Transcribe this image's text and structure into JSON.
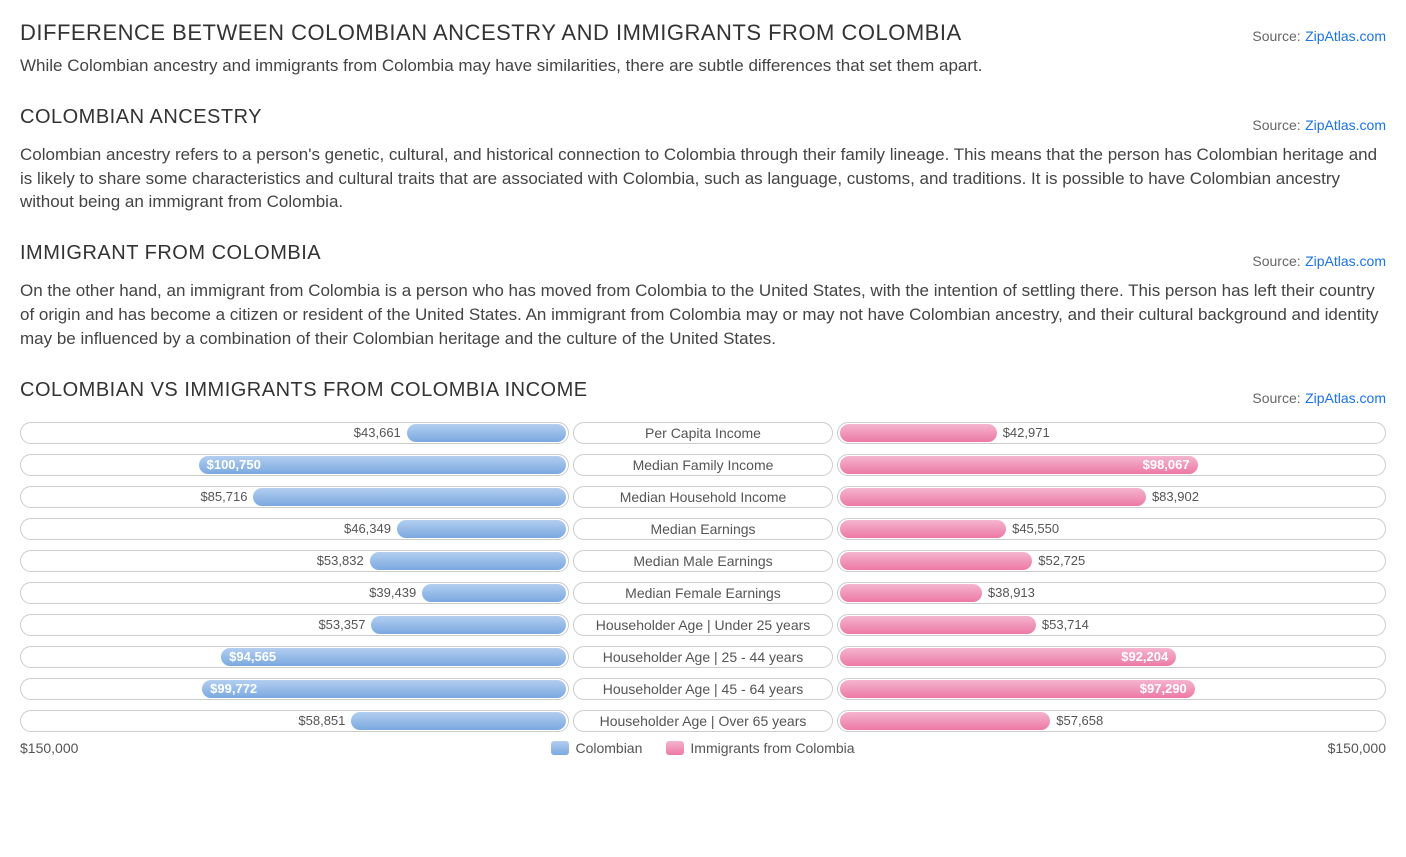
{
  "main_title": "DIFFERENCE BETWEEN COLOMBIAN ANCESTRY AND IMMIGRANTS FROM COLOMBIA",
  "source_label": "Source:",
  "source_name": "ZipAtlas.com",
  "intro_paragraph": "While Colombian ancestry and immigrants from Colombia may have similarities, there are subtle differences that set them apart.",
  "ancestry_title": "COLOMBIAN ANCESTRY",
  "ancestry_paragraph": "Colombian ancestry refers to a person's genetic, cultural, and historical connection to Colombia through their family lineage. This means that the person has Colombian heritage and is likely to share some characteristics and cultural traits that are associated with Colombia, such as language, customs, and traditions. It is possible to have Colombian ancestry without being an immigrant from Colombia.",
  "immigrant_title": "IMMIGRANT FROM COLOMBIA",
  "immigrant_paragraph": "On the other hand, an immigrant from Colombia is a person who has moved from Colombia to the United States, with the intention of settling there. This person has left their country of origin and has become a citizen or resident of the United States. An immigrant from Colombia may or may not have Colombian ancestry, and their cultural background and identity may be influenced by a combination of their Colombian heritage and the culture of the United States.",
  "chart_title": "COLOMBIAN VS IMMIGRANTS FROM COLOMBIA INCOME",
  "chart": {
    "type": "butterfly-bar",
    "max_value": 150000,
    "max_label": "$150,000",
    "left_legend": "Colombian",
    "right_legend": "Immigrants from Colombia",
    "left_color_light": "#b3cef0",
    "left_color_dark": "#7aa9e0",
    "right_color_light": "#f5b5ce",
    "right_color_dark": "#ed79a5",
    "track_border": "#cccccc",
    "background": "#ffffff",
    "rows": [
      {
        "label": "Per Capita Income",
        "left_value": 43661,
        "left_text": "$43,661",
        "right_value": 42971,
        "right_text": "$42,971",
        "left_inside": false,
        "right_inside": false
      },
      {
        "label": "Median Family Income",
        "left_value": 100750,
        "left_text": "$100,750",
        "right_value": 98067,
        "right_text": "$98,067",
        "left_inside": true,
        "right_inside": true
      },
      {
        "label": "Median Household Income",
        "left_value": 85716,
        "left_text": "$85,716",
        "right_value": 83902,
        "right_text": "$83,902",
        "left_inside": false,
        "right_inside": false
      },
      {
        "label": "Median Earnings",
        "left_value": 46349,
        "left_text": "$46,349",
        "right_value": 45550,
        "right_text": "$45,550",
        "left_inside": false,
        "right_inside": false
      },
      {
        "label": "Median Male Earnings",
        "left_value": 53832,
        "left_text": "$53,832",
        "right_value": 52725,
        "right_text": "$52,725",
        "left_inside": false,
        "right_inside": false
      },
      {
        "label": "Median Female Earnings",
        "left_value": 39439,
        "left_text": "$39,439",
        "right_value": 38913,
        "right_text": "$38,913",
        "left_inside": false,
        "right_inside": false
      },
      {
        "label": "Householder Age | Under 25 years",
        "left_value": 53357,
        "left_text": "$53,357",
        "right_value": 53714,
        "right_text": "$53,714",
        "left_inside": false,
        "right_inside": false
      },
      {
        "label": "Householder Age | 25 - 44 years",
        "left_value": 94565,
        "left_text": "$94,565",
        "right_value": 92204,
        "right_text": "$92,204",
        "left_inside": true,
        "right_inside": true
      },
      {
        "label": "Householder Age | 45 - 64 years",
        "left_value": 99772,
        "left_text": "$99,772",
        "right_value": 97290,
        "right_text": "$97,290",
        "left_inside": true,
        "right_inside": true
      },
      {
        "label": "Householder Age | Over 65 years",
        "left_value": 58851,
        "left_text": "$58,851",
        "right_value": 57658,
        "right_text": "$57,658",
        "left_inside": false,
        "right_inside": false
      }
    ]
  }
}
